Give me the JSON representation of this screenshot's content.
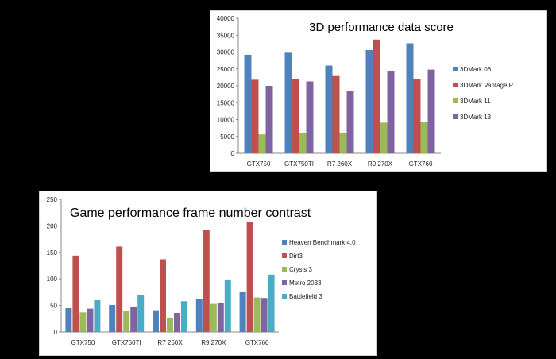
{
  "chart_data": [
    {
      "type": "bar",
      "title": "3D performance data score",
      "categories": [
        "GTX750",
        "GTX750TI",
        "R7 260X",
        "R9 270X",
        "GTX760"
      ],
      "series": [
        {
          "name": "3DMark 06",
          "color": "#4f81bd",
          "values": [
            29200,
            29800,
            26000,
            30600,
            32600
          ]
        },
        {
          "name": "3DMark Vantage P",
          "color": "#c0504d",
          "values": [
            21800,
            21900,
            22900,
            33700,
            21900
          ]
        },
        {
          "name": "3DMark 11",
          "color": "#9bbb59",
          "values": [
            5600,
            6100,
            5900,
            9100,
            9400
          ]
        },
        {
          "name": "3DMark 13",
          "color": "#8064a2",
          "values": [
            20000,
            21300,
            18400,
            24300,
            24800
          ]
        }
      ],
      "ylim": [
        0,
        40000
      ],
      "yticks": [
        0,
        5000,
        10000,
        15000,
        20000,
        25000,
        30000,
        35000,
        40000
      ],
      "xlabel": "",
      "ylabel": "",
      "legend": "right"
    },
    {
      "type": "bar",
      "title": "Game performance frame number contrast",
      "categories": [
        "GTX750",
        "GTX750TI",
        "R7 260X",
        "R9 270X",
        "GTX760"
      ],
      "series": [
        {
          "name": "Heaven Benchmark 4.0",
          "color": "#4f81bd",
          "values": [
            45,
            51,
            41,
            62,
            75
          ]
        },
        {
          "name": "Dirt3",
          "color": "#c0504d",
          "values": [
            144,
            161,
            137,
            192,
            208
          ]
        },
        {
          "name": "Crysis 3",
          "color": "#9bbb59",
          "values": [
            37,
            39,
            27,
            53,
            65
          ]
        },
        {
          "name": "Metro 2033",
          "color": "#8064a2",
          "values": [
            44,
            48,
            36,
            55,
            64
          ]
        },
        {
          "name": "Battlefield 3",
          "color": "#4bacc6",
          "values": [
            60,
            70,
            58,
            99,
            108
          ]
        }
      ],
      "ylim": [
        0,
        250
      ],
      "yticks": [
        0,
        50,
        100,
        150,
        200,
        250
      ],
      "xlabel": "",
      "ylabel": "",
      "legend": "right"
    }
  ]
}
